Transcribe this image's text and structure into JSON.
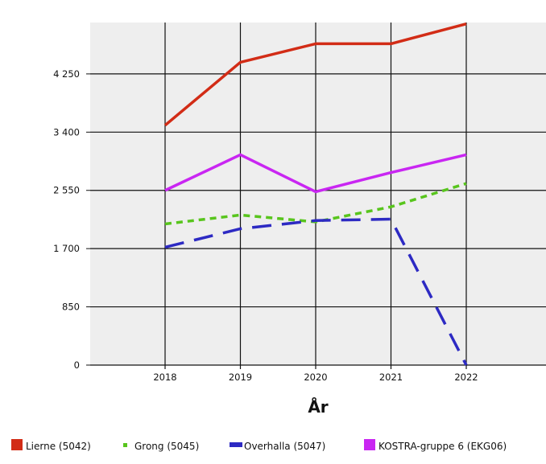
{
  "chart_data": {
    "type": "line",
    "title": "",
    "xlabel": "År",
    "ylabel": "",
    "x": [
      "2018",
      "2019",
      "2020",
      "2021",
      "2022"
    ],
    "ylim": [
      0,
      5000
    ],
    "y_ticks": [
      {
        "value": 0,
        "label": "0"
      },
      {
        "value": 850,
        "label": "850"
      },
      {
        "value": 1700,
        "label": "1 700"
      },
      {
        "value": 2550,
        "label": "2 550"
      },
      {
        "value": 3400,
        "label": "3 400"
      },
      {
        "value": 4250,
        "label": "4 250"
      }
    ],
    "grid": true,
    "legend_position": "bottom",
    "series": [
      {
        "name": "Lierne (5042)",
        "color": "#d22c16",
        "line_style": "solid",
        "legend_marker": "square",
        "values": [
          3500,
          4420,
          4690,
          4690,
          4980
        ]
      },
      {
        "name": "Grong (5045)",
        "color": "#58c51d",
        "line_style": "dotted",
        "legend_marker": "dot",
        "values": [
          2060,
          2190,
          2090,
          2310,
          2650
        ]
      },
      {
        "name": "Overhalla (5047)",
        "color": "#2d2ac3",
        "line_style": "dashed",
        "legend_marker": "bar",
        "values": [
          1720,
          1990,
          2110,
          2130,
          0
        ]
      },
      {
        "name": "KOSTRA-gruppe 6 (EKG06)",
        "color": "#c926f2",
        "line_style": "solid",
        "legend_marker": "square",
        "values": [
          2550,
          3070,
          2530,
          2810,
          3070
        ]
      }
    ]
  }
}
